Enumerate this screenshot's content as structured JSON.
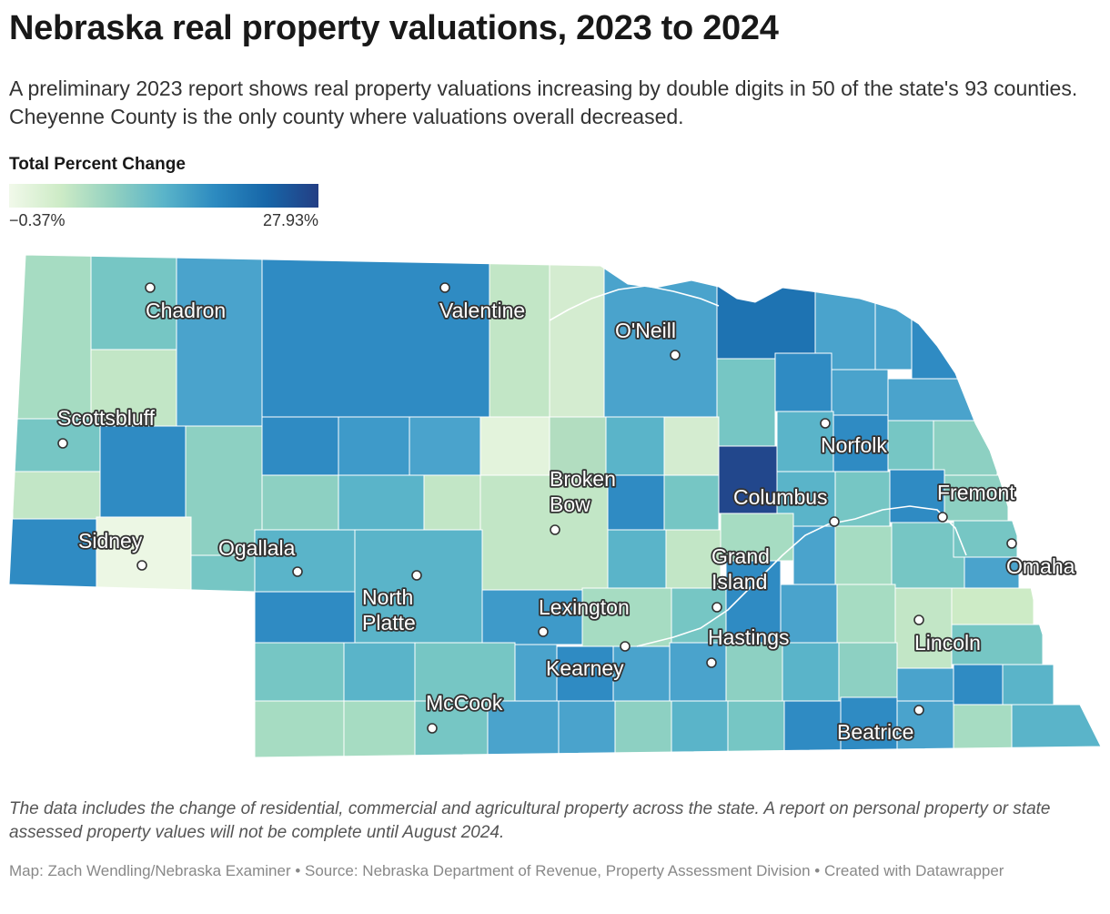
{
  "title": "Nebraska real property valuations, 2023 to 2024",
  "subtitle": "A preliminary 2023 report shows real property valuations increasing by double digits in 50 of the state's 93 counties. Cheyenne County is the only county where valuations overall decreased.",
  "legend": {
    "title": "Total Percent Change",
    "min_label": "−0.37%",
    "max_label": "27.93%",
    "colors": [
      "#f1f9ea",
      "#cdebc6",
      "#93d1c0",
      "#5ab4c9",
      "#2c8ac0",
      "#1766a8",
      "#233e84"
    ]
  },
  "colors": {
    "mint": "#a6dcc2",
    "light_mint": "#c2e6c6",
    "teal": "#76c6c4",
    "blue_mid": "#4aa3cc",
    "blue": "#2f8bc3",
    "blue_dark": "#1e73b2",
    "navy": "#22478c",
    "pale": "#ecf7e4"
  },
  "cities": [
    {
      "name": "Chadron"
    },
    {
      "name": "Valentine"
    },
    {
      "name": "O'Neill"
    },
    {
      "name": "Scottsbluff"
    },
    {
      "name": "Norfolk"
    },
    {
      "name": "Broken Bow"
    },
    {
      "name": "Columbus"
    },
    {
      "name": "Fremont"
    },
    {
      "name": "Sidney"
    },
    {
      "name": "Ogallala"
    },
    {
      "name": "Omaha"
    },
    {
      "name": "North Platte"
    },
    {
      "name": "Grand Island"
    },
    {
      "name": "Lexington"
    },
    {
      "name": "Hastings"
    },
    {
      "name": "Kearney"
    },
    {
      "name": "Lincoln"
    },
    {
      "name": "McCook"
    },
    {
      "name": "Beatrice"
    }
  ],
  "notes": "The data includes the change of residential, commercial and agricultural property across the state. A report on personal property or state assessed property values will not be complete until August 2024.",
  "byline": "Map: Zach Wendling/Nebraska Examiner • Source: Nebraska Department of Revenue, Property Assessment Division • Created with Datawrapper"
}
